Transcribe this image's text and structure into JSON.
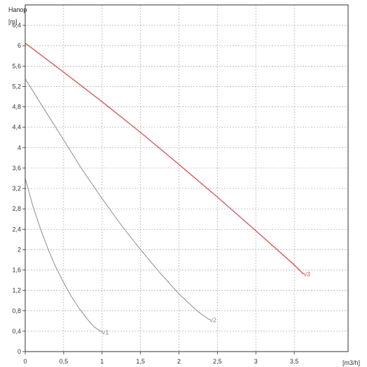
{
  "chart_data": {
    "type": "line",
    "title": "Напор",
    "ylabel": "[m]",
    "xlabel": "[m3/h]",
    "xlim": [
      0,
      4.2
    ],
    "ylim": [
      0,
      6.8
    ],
    "x_ticks": [
      0,
      0.5,
      1,
      1.5,
      2,
      2.5,
      3,
      3.5
    ],
    "x_tick_labels": [
      "0",
      "0,5",
      "1",
      "1,5",
      "2",
      "2,5",
      "3",
      "3,5"
    ],
    "y_ticks": [
      0,
      0.4,
      0.8,
      1.2,
      1.6,
      2,
      2.4,
      2.8,
      3.2,
      3.6,
      4,
      4.4,
      4.8,
      5.2,
      5.6,
      6,
      6.4
    ],
    "y_tick_labels": [
      "0",
      "0,4",
      "0,8",
      "1,2",
      "1,6",
      "2",
      "2,4",
      "2,8",
      "3,2",
      "3,6",
      "4",
      "4,4",
      "4,8",
      "5,2",
      "5,6",
      "6",
      "6,4"
    ],
    "grid": true,
    "series": [
      {
        "name": "v1",
        "color": "#8c8c8c",
        "x": [
          0,
          0.1,
          0.2,
          0.3,
          0.4,
          0.5,
          0.6,
          0.7,
          0.8,
          0.9,
          1.0
        ],
        "y": [
          3.4,
          2.85,
          2.4,
          2.0,
          1.65,
          1.35,
          1.08,
          0.85,
          0.65,
          0.48,
          0.38
        ]
      },
      {
        "name": "v2",
        "color": "#8c8c8c",
        "x": [
          0,
          0.25,
          0.5,
          0.75,
          1.0,
          1.25,
          1.5,
          1.75,
          2.0,
          2.25,
          2.4
        ],
        "y": [
          5.35,
          4.75,
          4.15,
          3.55,
          3.0,
          2.48,
          2.0,
          1.55,
          1.13,
          0.78,
          0.62
        ]
      },
      {
        "name": "v3",
        "color": "#d85a5a",
        "x": [
          0,
          0.5,
          1.0,
          1.5,
          2.0,
          2.5,
          3.0,
          3.5,
          3.62
        ],
        "y": [
          6.05,
          5.48,
          4.9,
          4.3,
          3.67,
          3.03,
          2.37,
          1.7,
          1.52
        ]
      }
    ]
  }
}
